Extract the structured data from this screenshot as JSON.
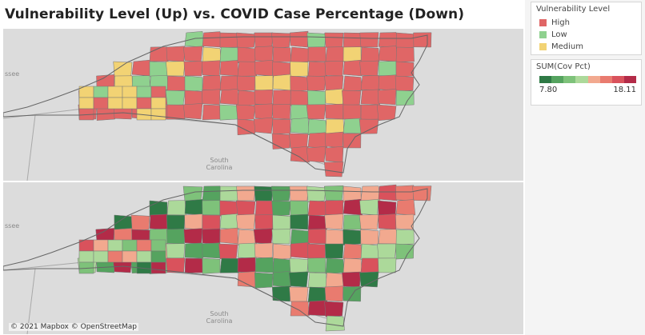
{
  "title": "Vulnerability Level (Up) vs. COVID Case Percentage (Down)",
  "map_labels": {
    "state_partial": "ssee",
    "south_carolina": "South Carolina"
  },
  "attribution": "© 2021 Mapbox © OpenStreetMap",
  "legend_vulnerability": {
    "title": "Vulnerability Level",
    "items": [
      {
        "label": "High",
        "color": "#e06666"
      },
      {
        "label": "Low",
        "color": "#8fd18f"
      },
      {
        "label": "Medium",
        "color": "#f2d374"
      }
    ]
  },
  "legend_sum": {
    "title": "SUM(Cov Pct)",
    "min_label": "7.80",
    "max_label": "18.11",
    "colors": [
      "#2f7a46",
      "#55a35f",
      "#7ec27a",
      "#acd99a",
      "#f2a98f",
      "#e97b6f",
      "#d9525c",
      "#b32b48"
    ]
  },
  "palette": {
    "land": "#d9d9d9",
    "water": "#e8e8e8",
    "state_line": "#9a9a9a",
    "county_line": "#777777"
  }
}
